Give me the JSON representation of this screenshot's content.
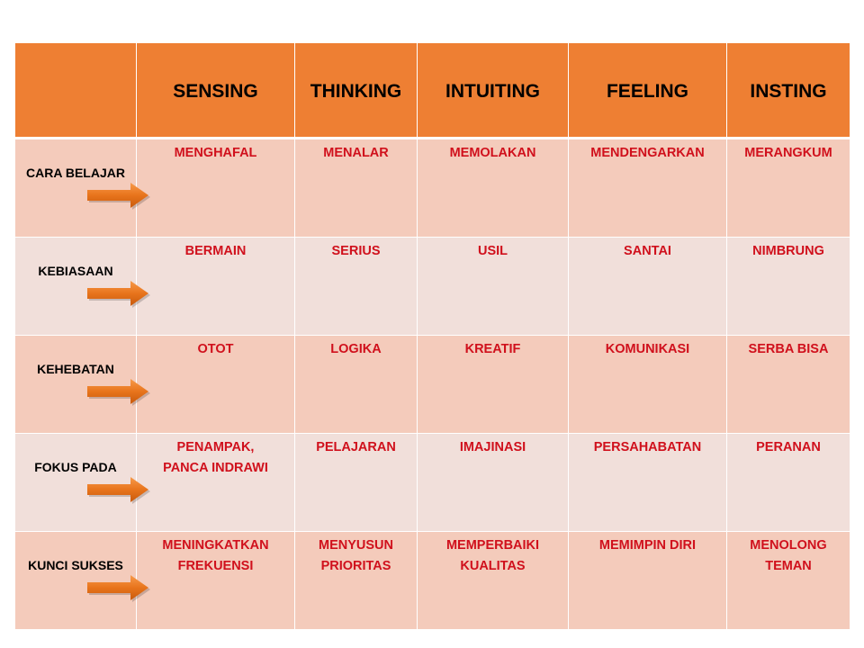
{
  "table": {
    "columns": [
      "",
      "SENSING",
      "THINKING",
      "INTUITING",
      "FEELING",
      "INSTING"
    ],
    "rows": [
      {
        "label": "CARA BELAJAR",
        "cells": [
          [
            "MENGHAFAL"
          ],
          [
            "MENALAR"
          ],
          [
            "MEMOLAKAN"
          ],
          [
            "MENDENGARKAN"
          ],
          [
            "MERANGKUM"
          ]
        ]
      },
      {
        "label": "KEBIASAAN",
        "cells": [
          [
            "BERMAIN"
          ],
          [
            "SERIUS"
          ],
          [
            "USIL"
          ],
          [
            "SANTAI"
          ],
          [
            "NIMBRUNG"
          ]
        ]
      },
      {
        "label": "KEHEBATAN",
        "cells": [
          [
            "OTOT"
          ],
          [
            "LOGIKA"
          ],
          [
            "KREATIF"
          ],
          [
            "KOMUNIKASI"
          ],
          [
            "SERBA BISA"
          ]
        ]
      },
      {
        "label": "FOKUS PADA",
        "cells": [
          [
            "PENAMPAK,",
            "PANCA INDRAWI"
          ],
          [
            "PELAJARAN"
          ],
          [
            "IMAJINASI"
          ],
          [
            "PERSAHABATAN"
          ],
          [
            "PERANAN"
          ]
        ]
      },
      {
        "label": "KUNCI SUKSES",
        "cells": [
          [
            "MENINGKATKAN",
            "FREKUENSI"
          ],
          [
            "MENYUSUN",
            "PRIORITAS"
          ],
          [
            "MEMPERBAIKI",
            "KUALITAS"
          ],
          [
            "MEMIMPIN DIRI"
          ],
          [
            "MENOLONG",
            "TEMAN"
          ]
        ]
      }
    ]
  },
  "colors": {
    "header_bg": "#ee7f33",
    "row_odd_bg": "#f4cbbb",
    "row_even_bg": "#f1dfda",
    "cell_text": "#d0101c",
    "arrow": "#e8741c"
  },
  "icons": {
    "row_marker": "right-arrow-icon"
  }
}
